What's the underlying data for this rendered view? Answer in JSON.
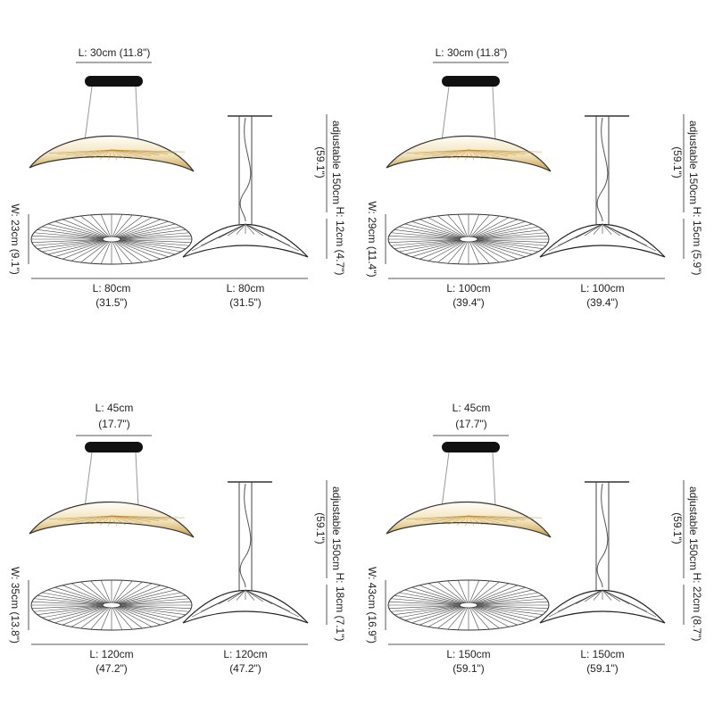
{
  "panels": [
    {
      "canopy_length": [
        "L: 30cm (11.8\")"
      ],
      "drop": [
        "adjustable 150cm",
        "(59.1\")"
      ],
      "shade_height": "H: 12cm (4.7\")",
      "shade_width": "W: 23cm (9.1\")",
      "top_length": [
        "L: 80cm",
        "(31.5\")"
      ],
      "side_length": [
        "L: 80cm",
        "(31.5\")"
      ]
    },
    {
      "canopy_length": [
        "L: 30cm (11.8\")"
      ],
      "drop": [
        "adjustable 150cm",
        "(59.1\")"
      ],
      "shade_height": "H: 15cm (5.9\")",
      "shade_width": "W: 29cm (11.4\")",
      "top_length": [
        "L: 100cm",
        "(39.4\")"
      ],
      "side_length": [
        "L: 100cm",
        "(39.4\")"
      ]
    },
    {
      "canopy_length": [
        "L: 45cm",
        "(17.7\")"
      ],
      "drop": [
        "adjustable 150cm",
        "(59.1\")"
      ],
      "shade_height": "H: 18cm (7.1\")",
      "shade_width": "W: 35cm (13.8\")",
      "top_length": [
        "L: 120cm",
        "(47.2\")"
      ],
      "side_length": [
        "L: 120cm",
        "(47.2\")"
      ]
    },
    {
      "canopy_length": [
        "L: 45cm",
        "(17.7\")"
      ],
      "drop": [
        "adjustable 150cm",
        "(59.1\")"
      ],
      "shade_height": "H: 22cm (8.7\")",
      "shade_width": "W: 43cm (16.9\")",
      "top_length": [
        "L: 150cm",
        "(59.1\")"
      ],
      "side_length": [
        "L: 150cm",
        "(59.1\")"
      ]
    }
  ]
}
